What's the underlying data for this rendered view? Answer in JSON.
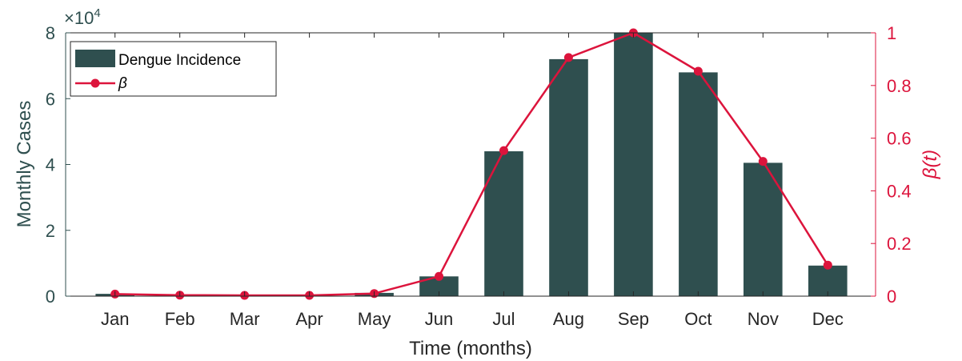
{
  "chart_data": {
    "type": "bar",
    "categories": [
      "Jan",
      "Feb",
      "Mar",
      "Apr",
      "May",
      "Jun",
      "Jul",
      "Aug",
      "Sep",
      "Oct",
      "Nov",
      "Dec"
    ],
    "xlabel": "Time (months)",
    "ylabel_left": "Monthly Cases",
    "ylabel_right": "β(t)",
    "left_axis_multiplier": "×10",
    "left_axis_exponent": "4",
    "left_ylim": [
      0,
      8
    ],
    "left_ticks": [
      "0",
      "2",
      "4",
      "6",
      "8"
    ],
    "right_ylim": [
      0,
      1
    ],
    "right_ticks": [
      "0",
      "0.2",
      "0.4",
      "0.6",
      "0.8",
      "1"
    ],
    "grid": false,
    "legend_position": "top-left",
    "series": [
      {
        "name": "Dengue Incidence",
        "type": "bar",
        "axis": "left",
        "color": "#2f4f4f",
        "values": [
          0.07,
          0.02,
          0.02,
          0.02,
          0.1,
          0.6,
          4.4,
          7.2,
          8.0,
          6.8,
          4.05,
          0.93
        ]
      },
      {
        "name": "β",
        "type": "line",
        "axis": "right",
        "color": "#dc143c",
        "values": [
          0.008,
          0.004,
          0.003,
          0.003,
          0.01,
          0.075,
          0.553,
          0.906,
          1.0,
          0.854,
          0.512,
          0.118
        ]
      }
    ]
  }
}
